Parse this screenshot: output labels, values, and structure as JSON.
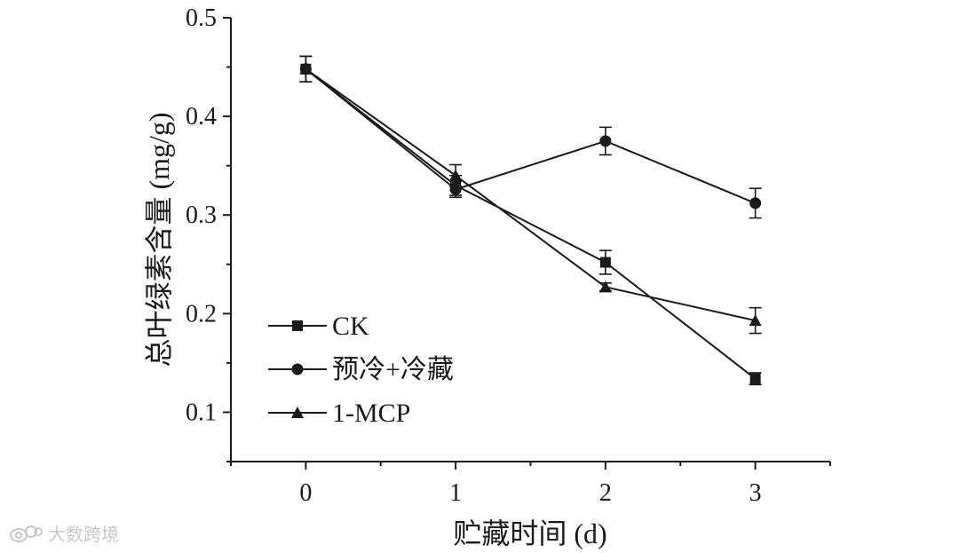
{
  "chart_data": {
    "type": "line",
    "xlabel": "贮藏时间 (d)",
    "ylabel": "总叶绿素含量 (mg/g)",
    "x": [
      0,
      1,
      2,
      3
    ],
    "xlim": [
      -0.5,
      3.5
    ],
    "ylim": [
      0.05,
      0.5
    ],
    "xticks": [
      0,
      1,
      2,
      3
    ],
    "yticks": [
      0.1,
      0.2,
      0.3,
      0.4,
      0.5
    ],
    "grid": false,
    "legend_position": "bottom-left",
    "series": [
      {
        "name": "CK",
        "marker": "square",
        "values": [
          0.448,
          0.33,
          0.252,
          0.134
        ],
        "errors": [
          0.013,
          0.01,
          0.012,
          0.006
        ]
      },
      {
        "name": "预冷+冷藏",
        "marker": "circle",
        "values": [
          0.448,
          0.326,
          0.375,
          0.312
        ],
        "errors": [
          0.013,
          0.008,
          0.014,
          0.015
        ]
      },
      {
        "name": "1-MCP",
        "marker": "triangle",
        "values": [
          0.448,
          0.34,
          0.227,
          0.193
        ],
        "errors": [
          0.013,
          0.011,
          0.004,
          0.013
        ]
      }
    ]
  },
  "watermark": {
    "text": "大数跨境",
    "icon": "weibo-logo-icon"
  }
}
